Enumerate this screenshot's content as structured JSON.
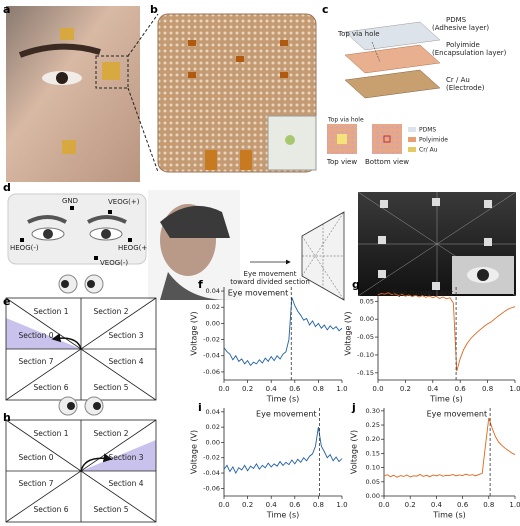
{
  "panel_labels": [
    "a",
    "b",
    "c",
    "d",
    "e",
    "f",
    "g",
    "h",
    "i",
    "j"
  ],
  "panel_c": {
    "layers": [
      "PDMS",
      "(Adhesive layer)",
      "Polyimide",
      "(Encapsulation layer)",
      "Cr / Au",
      "(Electrode)"
    ],
    "top_via_hole": "Top via hole",
    "inset_via_hole": "Top via hole",
    "top_view": "Top view",
    "bottom_view": "Bottom view",
    "legend": [
      "PDMS",
      "Polyimide",
      "Cr/ Au"
    ]
  },
  "panel_d": {
    "electrodes": [
      "GND",
      "VEOG(+)",
      "HEOG(-)",
      "HEOG(+)",
      "VEOG(-)"
    ],
    "arrow_text": [
      "Eye movement",
      "toward divided section"
    ]
  },
  "panel_e": {
    "sections": [
      "Section 1",
      "Section 2",
      "Section 0",
      "Section 3",
      "Section 7",
      "Section 4",
      "Section 6",
      "Section 5"
    ]
  },
  "panel_h": {
    "sections": [
      "Section 1",
      "Section 2",
      "Section 0",
      "Section 3",
      "Section 7",
      "Section 4",
      "Section 6",
      "Section 5"
    ]
  },
  "chart_data": [
    {
      "type": "line",
      "xlabel": "Time (s)",
      "ylabel": "Voltage (V)",
      "annotation": "Eye movement",
      "event_x": 0.57,
      "x": [
        0,
        0.025,
        0.05,
        0.075,
        0.1,
        0.125,
        0.15,
        0.175,
        0.2,
        0.225,
        0.25,
        0.275,
        0.3,
        0.325,
        0.35,
        0.375,
        0.4,
        0.425,
        0.45,
        0.475,
        0.5,
        0.525,
        0.55,
        0.575,
        0.6,
        0.625,
        0.65,
        0.675,
        0.7,
        0.725,
        0.75,
        0.775,
        0.8,
        0.825,
        0.85,
        0.875,
        0.9,
        0.925,
        0.95,
        0.975,
        1
      ],
      "series": [
        {
          "color": "#1f5fa6",
          "values": [
            -0.03,
            -0.035,
            -0.038,
            -0.045,
            -0.04,
            -0.047,
            -0.044,
            -0.05,
            -0.046,
            -0.052,
            -0.048,
            -0.05,
            -0.045,
            -0.049,
            -0.043,
            -0.047,
            -0.041,
            -0.046,
            -0.04,
            -0.044,
            -0.038,
            -0.035,
            -0.02,
            0.032,
            0.022,
            0.015,
            0.01,
            0.004,
            0.006,
            -0.002,
            0.003,
            -0.004,
            0.0,
            -0.006,
            -0.002,
            -0.008,
            -0.003,
            -0.007,
            -0.004,
            -0.009,
            -0.006
          ]
        }
      ],
      "xlim": [
        0,
        1
      ],
      "xticks": [
        {
          "value": 0,
          "label": "0.0"
        },
        0.2,
        0.4,
        0.6,
        0.8,
        {
          "value": 1,
          "label": "1.0"
        }
      ],
      "ylim": [
        -0.07,
        0.045
      ],
      "yticks": [
        0.04,
        0.02,
        {
          "value": 0,
          "label": "0.00"
        },
        -0.02,
        -0.04,
        -0.06
      ]
    },
    {
      "type": "line",
      "xlabel": "Time (s)",
      "ylabel": "Voltage (V)",
      "annotation": "Eye movement",
      "event_x": 0.57,
      "x": [
        0,
        0.025,
        0.05,
        0.075,
        0.1,
        0.125,
        0.15,
        0.175,
        0.2,
        0.225,
        0.25,
        0.275,
        0.3,
        0.325,
        0.35,
        0.375,
        0.4,
        0.425,
        0.45,
        0.475,
        0.5,
        0.525,
        0.55,
        0.575,
        0.6,
        0.625,
        0.65,
        0.675,
        0.7,
        0.725,
        0.75,
        0.775,
        0.8,
        0.825,
        0.85,
        0.875,
        0.9,
        0.925,
        0.95,
        0.975,
        1
      ],
      "series": [
        {
          "color": "#e0661e",
          "values": [
            0.068,
            0.072,
            0.07,
            0.074,
            0.069,
            0.071,
            0.066,
            0.07,
            0.064,
            0.068,
            0.063,
            0.067,
            0.062,
            0.066,
            0.061,
            0.065,
            0.06,
            0.064,
            0.058,
            0.062,
            0.057,
            0.06,
            0.045,
            -0.145,
            -0.11,
            -0.085,
            -0.068,
            -0.055,
            -0.045,
            -0.036,
            -0.028,
            -0.02,
            -0.013,
            -0.008,
            0.0,
            0.008,
            0.015,
            0.022,
            0.028,
            0.032,
            0.035
          ]
        }
      ],
      "xlim": [
        0,
        1
      ],
      "xticks": [
        {
          "value": 0,
          "label": "0.0"
        },
        0.2,
        0.4,
        0.6,
        0.8,
        {
          "value": 1,
          "label": "1.0"
        }
      ],
      "ylim": [
        -0.17,
        0.09
      ],
      "yticks": [
        0.05,
        {
          "value": 0,
          "label": "0.00"
        },
        -0.05,
        {
          "value": -0.1,
          "label": "-0.10"
        },
        -0.15
      ]
    },
    {
      "type": "line",
      "xlabel": "Time (s)",
      "ylabel": "Voltage (V)",
      "annotation": "Eye movement",
      "event_x": 0.81,
      "x": [
        0,
        0.025,
        0.05,
        0.075,
        0.1,
        0.125,
        0.15,
        0.175,
        0.2,
        0.225,
        0.25,
        0.275,
        0.3,
        0.325,
        0.35,
        0.375,
        0.4,
        0.425,
        0.45,
        0.475,
        0.5,
        0.525,
        0.55,
        0.575,
        0.6,
        0.625,
        0.65,
        0.675,
        0.7,
        0.725,
        0.75,
        0.775,
        0.8,
        0.825,
        0.85,
        0.875,
        0.9,
        0.925,
        0.95,
        0.975,
        1
      ],
      "series": [
        {
          "color": "#1f5fa6",
          "values": [
            -0.035,
            -0.03,
            -0.038,
            -0.032,
            -0.04,
            -0.033,
            -0.036,
            -0.03,
            -0.037,
            -0.031,
            -0.034,
            -0.028,
            -0.035,
            -0.03,
            -0.033,
            -0.027,
            -0.032,
            -0.028,
            -0.031,
            -0.025,
            -0.03,
            -0.026,
            -0.029,
            -0.023,
            -0.028,
            -0.022,
            -0.026,
            -0.02,
            -0.024,
            -0.018,
            -0.015,
            -0.005,
            0.02,
            -0.005,
            -0.012,
            -0.02,
            -0.016,
            -0.024,
            -0.019,
            -0.025,
            -0.021
          ]
        }
      ],
      "xlim": [
        0,
        1
      ],
      "xticks": [
        {
          "value": 0,
          "label": "0.0"
        },
        0.2,
        0.4,
        0.6,
        0.8,
        {
          "value": 1,
          "label": "1.0"
        }
      ],
      "ylim": [
        -0.07,
        0.045
      ],
      "yticks": [
        0.04,
        0.02,
        {
          "value": 0,
          "label": "0.00"
        },
        -0.02,
        -0.04,
        -0.06
      ]
    },
    {
      "type": "line",
      "xlabel": "Time (s)",
      "ylabel": "Voltage (V)",
      "annotation": "Eye movement",
      "event_x": 0.81,
      "x": [
        0,
        0.025,
        0.05,
        0.075,
        0.1,
        0.125,
        0.15,
        0.175,
        0.2,
        0.225,
        0.25,
        0.275,
        0.3,
        0.325,
        0.35,
        0.375,
        0.4,
        0.425,
        0.45,
        0.475,
        0.5,
        0.525,
        0.55,
        0.575,
        0.6,
        0.625,
        0.65,
        0.675,
        0.7,
        0.725,
        0.75,
        0.775,
        0.8,
        0.825,
        0.85,
        0.875,
        0.9,
        0.925,
        0.95,
        0.975,
        1
      ],
      "series": [
        {
          "color": "#e0661e",
          "values": [
            0.07,
            0.075,
            0.068,
            0.073,
            0.066,
            0.072,
            0.069,
            0.074,
            0.067,
            0.071,
            0.07,
            0.076,
            0.069,
            0.073,
            0.068,
            0.074,
            0.071,
            0.075,
            0.07,
            0.073,
            0.072,
            0.076,
            0.071,
            0.074,
            0.072,
            0.077,
            0.073,
            0.075,
            0.071,
            0.076,
            0.08,
            0.18,
            0.275,
            0.24,
            0.21,
            0.19,
            0.178,
            0.168,
            0.16,
            0.152,
            0.146
          ]
        }
      ],
      "xlim": [
        0,
        1
      ],
      "xticks": [
        {
          "value": 0,
          "label": "0.0"
        },
        0.2,
        0.4,
        0.6,
        0.8,
        {
          "value": 1,
          "label": "1.0"
        }
      ],
      "ylim": [
        0,
        0.31
      ],
      "yticks": [
        {
          "value": 0,
          "label": "0.00"
        },
        0.05,
        {
          "value": 0.1,
          "label": "0.10"
        },
        0.15,
        {
          "value": 0.2,
          "label": "0.20"
        },
        0.25,
        {
          "value": 0.3,
          "label": "0.30"
        }
      ]
    }
  ]
}
